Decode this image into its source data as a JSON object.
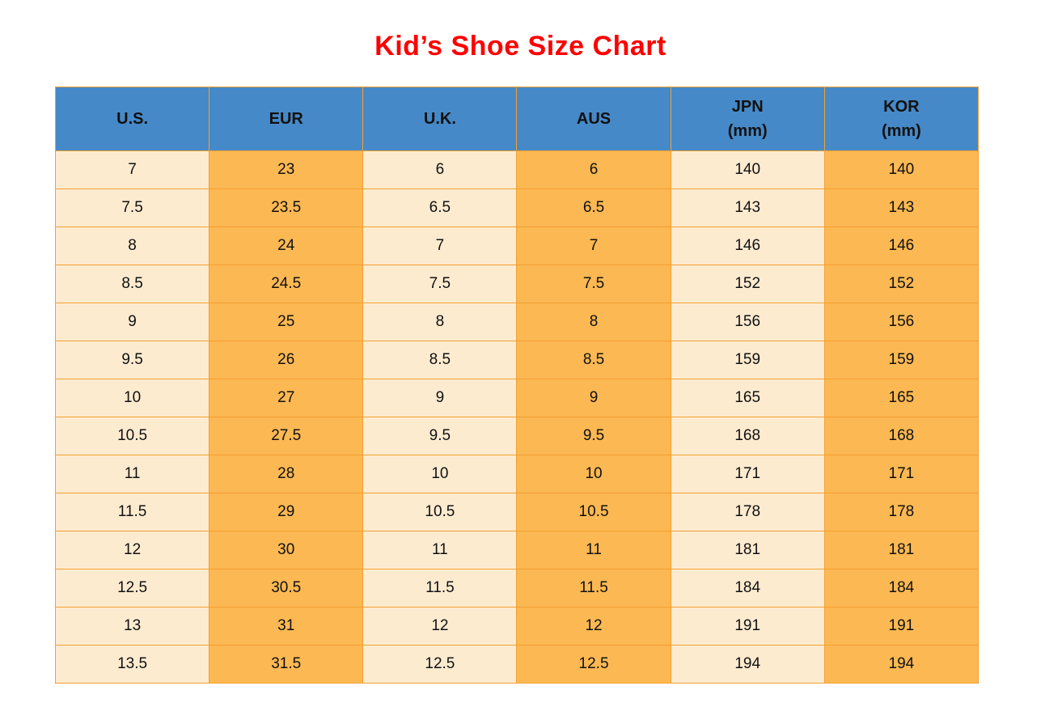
{
  "title": "Kid’s Shoe Size Chart",
  "chart_data": {
    "type": "table",
    "title": "Kid’s Shoe Size Chart",
    "columns": [
      "U.S.",
      "EUR",
      "U.K.",
      "AUS",
      "JPN (mm)",
      "KOR (mm)"
    ],
    "header_lines": [
      [
        "U.S."
      ],
      [
        "EUR"
      ],
      [
        "U.K."
      ],
      [
        "AUS"
      ],
      [
        "JPN",
        "(mm)"
      ],
      [
        "KOR",
        "(mm)"
      ]
    ],
    "rows": [
      [
        "7",
        "23",
        "6",
        "6",
        "140",
        "140"
      ],
      [
        "7.5",
        "23.5",
        "6.5",
        "6.5",
        "143",
        "143"
      ],
      [
        "8",
        "24",
        "7",
        "7",
        "146",
        "146"
      ],
      [
        "8.5",
        "24.5",
        "7.5",
        "7.5",
        "152",
        "152"
      ],
      [
        "9",
        "25",
        "8",
        "8",
        "156",
        "156"
      ],
      [
        "9.5",
        "26",
        "8.5",
        "8.5",
        "159",
        "159"
      ],
      [
        "10",
        "27",
        "9",
        "9",
        "165",
        "165"
      ],
      [
        "10.5",
        "27.5",
        "9.5",
        "9.5",
        "168",
        "168"
      ],
      [
        "11",
        "28",
        "10",
        "10",
        "171",
        "171"
      ],
      [
        "11.5",
        "29",
        "10.5",
        "10.5",
        "178",
        "178"
      ],
      [
        "12",
        "30",
        "11",
        "11",
        "181",
        "181"
      ],
      [
        "12.5",
        "30.5",
        "11.5",
        "11.5",
        "184",
        "184"
      ],
      [
        "13",
        "31",
        "12",
        "12",
        "191",
        "191"
      ],
      [
        "13.5",
        "31.5",
        "12.5",
        "12.5",
        "194",
        "194"
      ]
    ]
  },
  "colors": {
    "title": "#ff0000",
    "header_bg": "#4689c8",
    "cell_light": "#fdebd0",
    "cell_orange": "#fcb853",
    "border": "#f2a032",
    "text": "#111111"
  }
}
